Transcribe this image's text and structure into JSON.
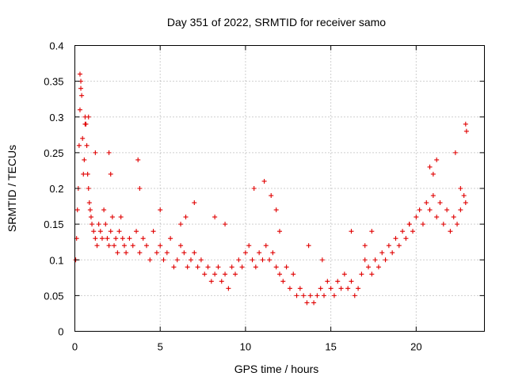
{
  "chart_data": {
    "type": "scatter",
    "title": "Day 351 of 2022, SRMTID for receiver samo",
    "xlabel": "GPS time / hours",
    "ylabel": "SRMTID / TECUs",
    "xlim": [
      0,
      24
    ],
    "ylim": [
      0,
      0.4
    ],
    "x_ticks": [
      "0",
      "5",
      "10",
      "15",
      "20"
    ],
    "y_ticks": [
      "0",
      "0.05",
      "0.1",
      "0.15",
      "0.2",
      "0.25",
      "0.3",
      "0.35",
      "0.4"
    ],
    "grid": true,
    "marker": "+",
    "marker_color": "#e00000",
    "series": [
      {
        "name": "samo",
        "x": [
          0.05,
          0.1,
          0.15,
          0.2,
          0.25,
          0.3,
          0.35,
          0.4,
          0.45,
          0.5,
          0.55,
          0.6,
          0.65,
          0.7,
          0.75,
          0.8,
          0.85,
          0.9,
          0.95,
          1.0,
          1.1,
          1.2,
          1.3,
          1.4,
          1.5,
          1.6,
          1.7,
          1.8,
          1.9,
          2.0,
          2.1,
          2.2,
          2.3,
          2.4,
          2.5,
          2.6,
          2.7,
          2.8,
          2.9,
          3.0,
          3.2,
          3.4,
          3.6,
          3.8,
          4.0,
          4.2,
          4.4,
          4.6,
          4.8,
          5.0,
          5.2,
          5.4,
          5.6,
          5.8,
          6.0,
          6.2,
          6.4,
          6.6,
          6.8,
          7.0,
          7.2,
          7.4,
          7.6,
          7.8,
          8.0,
          8.2,
          8.4,
          8.6,
          8.8,
          9.0,
          9.2,
          9.4,
          9.6,
          9.8,
          10.0,
          10.2,
          10.4,
          10.6,
          10.8,
          11.0,
          11.2,
          11.4,
          11.6,
          11.8,
          12.0,
          12.2,
          12.4,
          12.6,
          12.8,
          13.0,
          13.2,
          13.4,
          13.6,
          13.8,
          14.0,
          14.2,
          14.4,
          14.6,
          14.8,
          15.0,
          15.2,
          15.4,
          15.6,
          15.8,
          16.0,
          16.2,
          16.4,
          16.6,
          16.8,
          17.0,
          17.2,
          17.4,
          17.6,
          17.8,
          18.0,
          18.2,
          18.4,
          18.6,
          18.8,
          19.0,
          19.2,
          19.4,
          19.6,
          19.8,
          20.0,
          20.2,
          20.4,
          20.6,
          20.8,
          21.0,
          21.2,
          21.4,
          21.6,
          21.8,
          22.0,
          22.2,
          22.4,
          22.6,
          22.8,
          22.9,
          0.3,
          0.35,
          0.6,
          0.8,
          1.2,
          2.0,
          2.1,
          3.7,
          3.8,
          5.0,
          6.2,
          6.5,
          7.0,
          8.2,
          8.8,
          10.5,
          11.1,
          11.5,
          11.8,
          12.0,
          13.7,
          14.5,
          16.2,
          17.0,
          17.4,
          19.6,
          20.8,
          21.0,
          21.2,
          22.3,
          22.6,
          22.9,
          22.95
        ],
        "y": [
          0.1,
          0.13,
          0.17,
          0.2,
          0.26,
          0.31,
          0.35,
          0.33,
          0.27,
          0.22,
          0.24,
          0.3,
          0.29,
          0.26,
          0.22,
          0.2,
          0.18,
          0.17,
          0.16,
          0.15,
          0.14,
          0.13,
          0.12,
          0.15,
          0.14,
          0.13,
          0.17,
          0.15,
          0.13,
          0.12,
          0.14,
          0.16,
          0.12,
          0.13,
          0.11,
          0.14,
          0.16,
          0.13,
          0.12,
          0.11,
          0.13,
          0.12,
          0.14,
          0.11,
          0.13,
          0.12,
          0.1,
          0.14,
          0.11,
          0.12,
          0.1,
          0.11,
          0.13,
          0.09,
          0.1,
          0.12,
          0.11,
          0.09,
          0.1,
          0.11,
          0.09,
          0.1,
          0.08,
          0.09,
          0.07,
          0.08,
          0.09,
          0.07,
          0.08,
          0.06,
          0.09,
          0.08,
          0.1,
          0.09,
          0.11,
          0.12,
          0.1,
          0.09,
          0.11,
          0.1,
          0.12,
          0.1,
          0.11,
          0.09,
          0.08,
          0.07,
          0.09,
          0.06,
          0.08,
          0.05,
          0.06,
          0.05,
          0.04,
          0.05,
          0.04,
          0.05,
          0.06,
          0.05,
          0.07,
          0.06,
          0.05,
          0.07,
          0.06,
          0.08,
          0.06,
          0.07,
          0.05,
          0.06,
          0.08,
          0.1,
          0.09,
          0.08,
          0.1,
          0.09,
          0.11,
          0.1,
          0.12,
          0.11,
          0.13,
          0.12,
          0.14,
          0.13,
          0.15,
          0.14,
          0.16,
          0.17,
          0.15,
          0.18,
          0.17,
          0.19,
          0.16,
          0.18,
          0.15,
          0.17,
          0.14,
          0.16,
          0.15,
          0.17,
          0.19,
          0.18,
          0.36,
          0.34,
          0.29,
          0.3,
          0.25,
          0.25,
          0.22,
          0.24,
          0.2,
          0.17,
          0.15,
          0.16,
          0.18,
          0.16,
          0.15,
          0.2,
          0.21,
          0.19,
          0.17,
          0.14,
          0.12,
          0.1,
          0.14,
          0.12,
          0.14,
          0.15,
          0.23,
          0.22,
          0.24,
          0.25,
          0.2,
          0.29,
          0.28
        ]
      }
    ]
  }
}
